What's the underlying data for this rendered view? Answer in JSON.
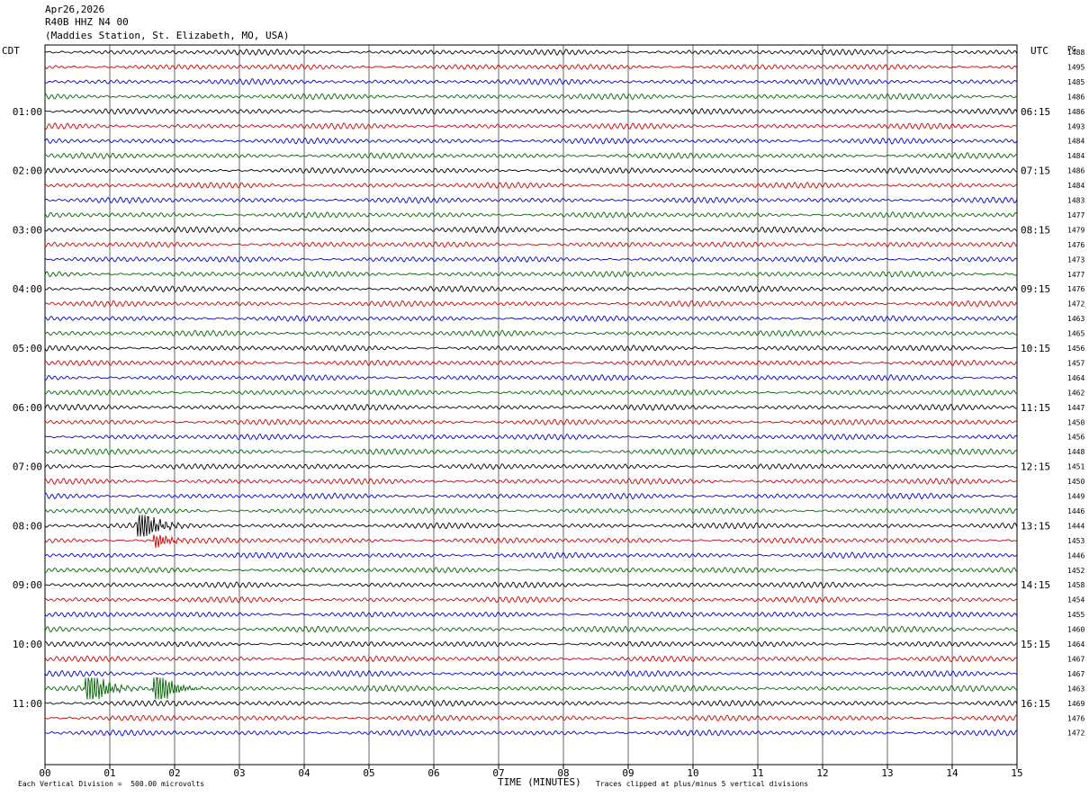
{
  "header": {
    "date": "Apr26,2026",
    "channel": "R40B HHZ N4 00",
    "station": "(Maddies Station, St. Elizabeth, MO, USA)"
  },
  "left_timezone": "CDT",
  "right_timezone": "UTC",
  "right_column_label": "PG",
  "footer": {
    "scale_note": "Each Vertical Division =  500.00 microvolts",
    "xlabel": "TIME (MINUTES)",
    "clip_note": "Traces clipped at plus/minus 5 vertical divisions"
  },
  "colors": {
    "trace_cycle": [
      "#000000",
      "#cc0000",
      "#0000cc",
      "#006600"
    ],
    "grid": "#000000"
  },
  "chart_data": {
    "type": "line",
    "description_kind": "helicorder",
    "xlim": [
      0,
      15
    ],
    "x_tick_labels": [
      "00",
      "01",
      "02",
      "03",
      "04",
      "05",
      "06",
      "07",
      "08",
      "09",
      "10",
      "11",
      "12",
      "13",
      "14",
      "15"
    ],
    "left_hour_labels": [
      "01:00",
      "02:00",
      "03:00",
      "04:00",
      "05:00",
      "06:00",
      "07:00",
      "08:00",
      "09:00",
      "10:00",
      "11:00"
    ],
    "right_hour_labels": [
      "06:15",
      "07:15",
      "08:15",
      "09:15",
      "10:15",
      "11:15",
      "12:15",
      "13:15",
      "14:15",
      "15:15",
      "16:15"
    ],
    "row_values": [
      "1488",
      "1495",
      "1485",
      "1486",
      "1486",
      "1493",
      "1484",
      "1484",
      "1486",
      "1484",
      "1483",
      "1477",
      "1479",
      "1476",
      "1473",
      "1477",
      "1476",
      "1472",
      "1463",
      "1465",
      "1456",
      "1457",
      "1464",
      "1462",
      "1447",
      "1450",
      "1456",
      "1448",
      "1451",
      "1450",
      "1449",
      "1446",
      "1444",
      "1453",
      "1446",
      "1452",
      "1458",
      "1454",
      "1455",
      "1460",
      "1464",
      "1467",
      "1467",
      "1463",
      "1469",
      "1476",
      "1472"
    ],
    "events": [
      {
        "row": 32,
        "minute": 1.45,
        "amplitude": 2.4
      },
      {
        "row": 33,
        "minute": 1.7,
        "amplitude": 0.9
      },
      {
        "row": 43,
        "minute": 0.65,
        "amplitude": 3.0
      },
      {
        "row": 43,
        "minute": 1.7,
        "amplitude": 2.7
      }
    ]
  }
}
